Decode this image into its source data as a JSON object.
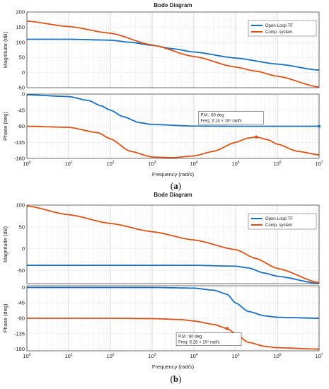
{
  "colors": {
    "open_loop": "#1a6fbd",
    "comp": "#d95319"
  },
  "chart_data": [
    {
      "id": "a",
      "type": "line",
      "title": "Bode Diagram",
      "caption_letter": "a",
      "xlabel": "Frequency  (rad/s)",
      "xscale": "log",
      "xlim": [
        1,
        10000000
      ],
      "xticks": [
        1,
        10,
        100,
        1000,
        10000,
        100000,
        1000000,
        10000000
      ],
      "grid": true,
      "legend": {
        "position": "top-right",
        "entries": [
          "Open-Loop TF",
          "Comp. system"
        ]
      },
      "magnitude": {
        "ylabel": "Magnitude (dB)",
        "ylim": [
          -50,
          200
        ],
        "yticks": [
          -50,
          0,
          50,
          100,
          150,
          200
        ],
        "series": [
          {
            "name": "Open-Loop TF",
            "x": [
              1,
              10,
              100,
              300,
              1000,
              3000,
              10000,
              100000,
              1000000,
              10000000
            ],
            "y": [
              110,
              110,
              107,
              100,
              90,
              79,
              68,
              48,
              28,
              8
            ]
          },
          {
            "name": "Comp. system",
            "x": [
              1,
              10,
              100,
              1000,
              10000,
              100000,
              300000,
              1000000,
              10000000
            ],
            "y": [
              170,
              152,
              130,
              91,
              53,
              18,
              5,
              -12,
              -48
            ]
          }
        ]
      },
      "phase": {
        "ylabel": "Phase (deg)",
        "ylim": [
          -180,
          0
        ],
        "yticks": [
          -180,
          -135,
          -90,
          -45,
          0
        ],
        "series": [
          {
            "name": "Open-Loop TF",
            "x": [
              1,
              10,
              30,
              60,
              100,
              200,
              500,
              1000,
              10000,
              100000,
              10000000
            ],
            "y": [
              -2,
              -7,
              -18,
              -33,
              -45,
              -63,
              -80,
              -85,
              -89.5,
              -90,
              -90
            ]
          },
          {
            "name": "Comp. system",
            "x": [
              1,
              10,
              50,
              100,
              300,
              1000,
              3000,
              10000,
              30000,
              100000,
              200000,
              314000,
              600000,
              1000000,
              3000000,
              10000000
            ],
            "y": [
              -90,
              -93,
              -108,
              -125,
              -160,
              -176,
              -178,
              -173,
              -160,
              -135,
              -123,
              -120,
              -128,
              -140,
              -160,
              -170
            ]
          }
        ],
        "annotation": {
          "lines": [
            "P.M.: 60 deg",
            "Freq: 3.14 × 10⁵ rad/s"
          ],
          "marker": {
            "x": 314000,
            "y": -120
          },
          "open_loop_marker": {
            "x": 10000000,
            "y": -90
          }
        }
      }
    },
    {
      "id": "b",
      "type": "line",
      "title": "Bode Diagram",
      "caption_letter": "b",
      "xlabel": "Frequency  (rad/s)",
      "xscale": "log",
      "xlim": [
        1,
        10000000
      ],
      "xticks": [
        1,
        10,
        100,
        1000,
        10000,
        100000,
        1000000,
        10000000
      ],
      "grid": true,
      "legend": {
        "position": "top-right",
        "entries": [
          "Open-Loop TF",
          "Comp. system"
        ]
      },
      "magnitude": {
        "ylabel": "Magnitude (dB)",
        "ylim": [
          -80,
          100
        ],
        "yticks": [
          -50,
          0,
          50,
          100
        ],
        "series": [
          {
            "name": "Open-Loop TF",
            "x": [
              1,
              1000,
              10000,
              100000,
              200000,
              500000,
              1000000,
              10000000
            ],
            "y": [
              -38,
              -38,
              -38,
              -40,
              -44,
              -56,
              -63,
              -80
            ]
          },
          {
            "name": "Comp. system",
            "x": [
              1,
              10,
              100,
              1000,
              10000,
              100000,
              300000,
              1000000,
              10000000
            ],
            "y": [
              98,
              78,
              58,
              39,
              20,
              -2,
              -22,
              -45,
              -78
            ]
          }
        ]
      },
      "phase": {
        "ylabel": "Phase (deg)",
        "ylim": [
          -185,
          5
        ],
        "yticks": [
          -180,
          -135,
          -90,
          -45,
          0
        ],
        "series": [
          {
            "name": "Open-Loop TF",
            "x": [
              1,
              1000,
              10000,
              30000,
              62800,
              100000,
              200000,
              500000,
              1000000,
              10000000
            ],
            "y": [
              0,
              0,
              -2,
              -8,
              -20,
              -45,
              -70,
              -83,
              -87,
              -90
            ]
          },
          {
            "name": "Comp. system",
            "x": [
              1,
              100,
              1000,
              5000,
              10000,
              30000,
              62800,
              100000,
              200000,
              500000,
              1000000,
              10000000
            ],
            "y": [
              -90,
              -90,
              -91,
              -94,
              -98,
              -108,
              -120,
              -135,
              -160,
              -172,
              -176,
              -180
            ]
          }
        ],
        "annotation": {
          "lines": [
            "P.M.: 60 deg",
            "Freq: 6.28 × 10⁴ rad/s"
          ],
          "marker": {
            "x": 62800,
            "y": -120
          }
        }
      }
    }
  ]
}
